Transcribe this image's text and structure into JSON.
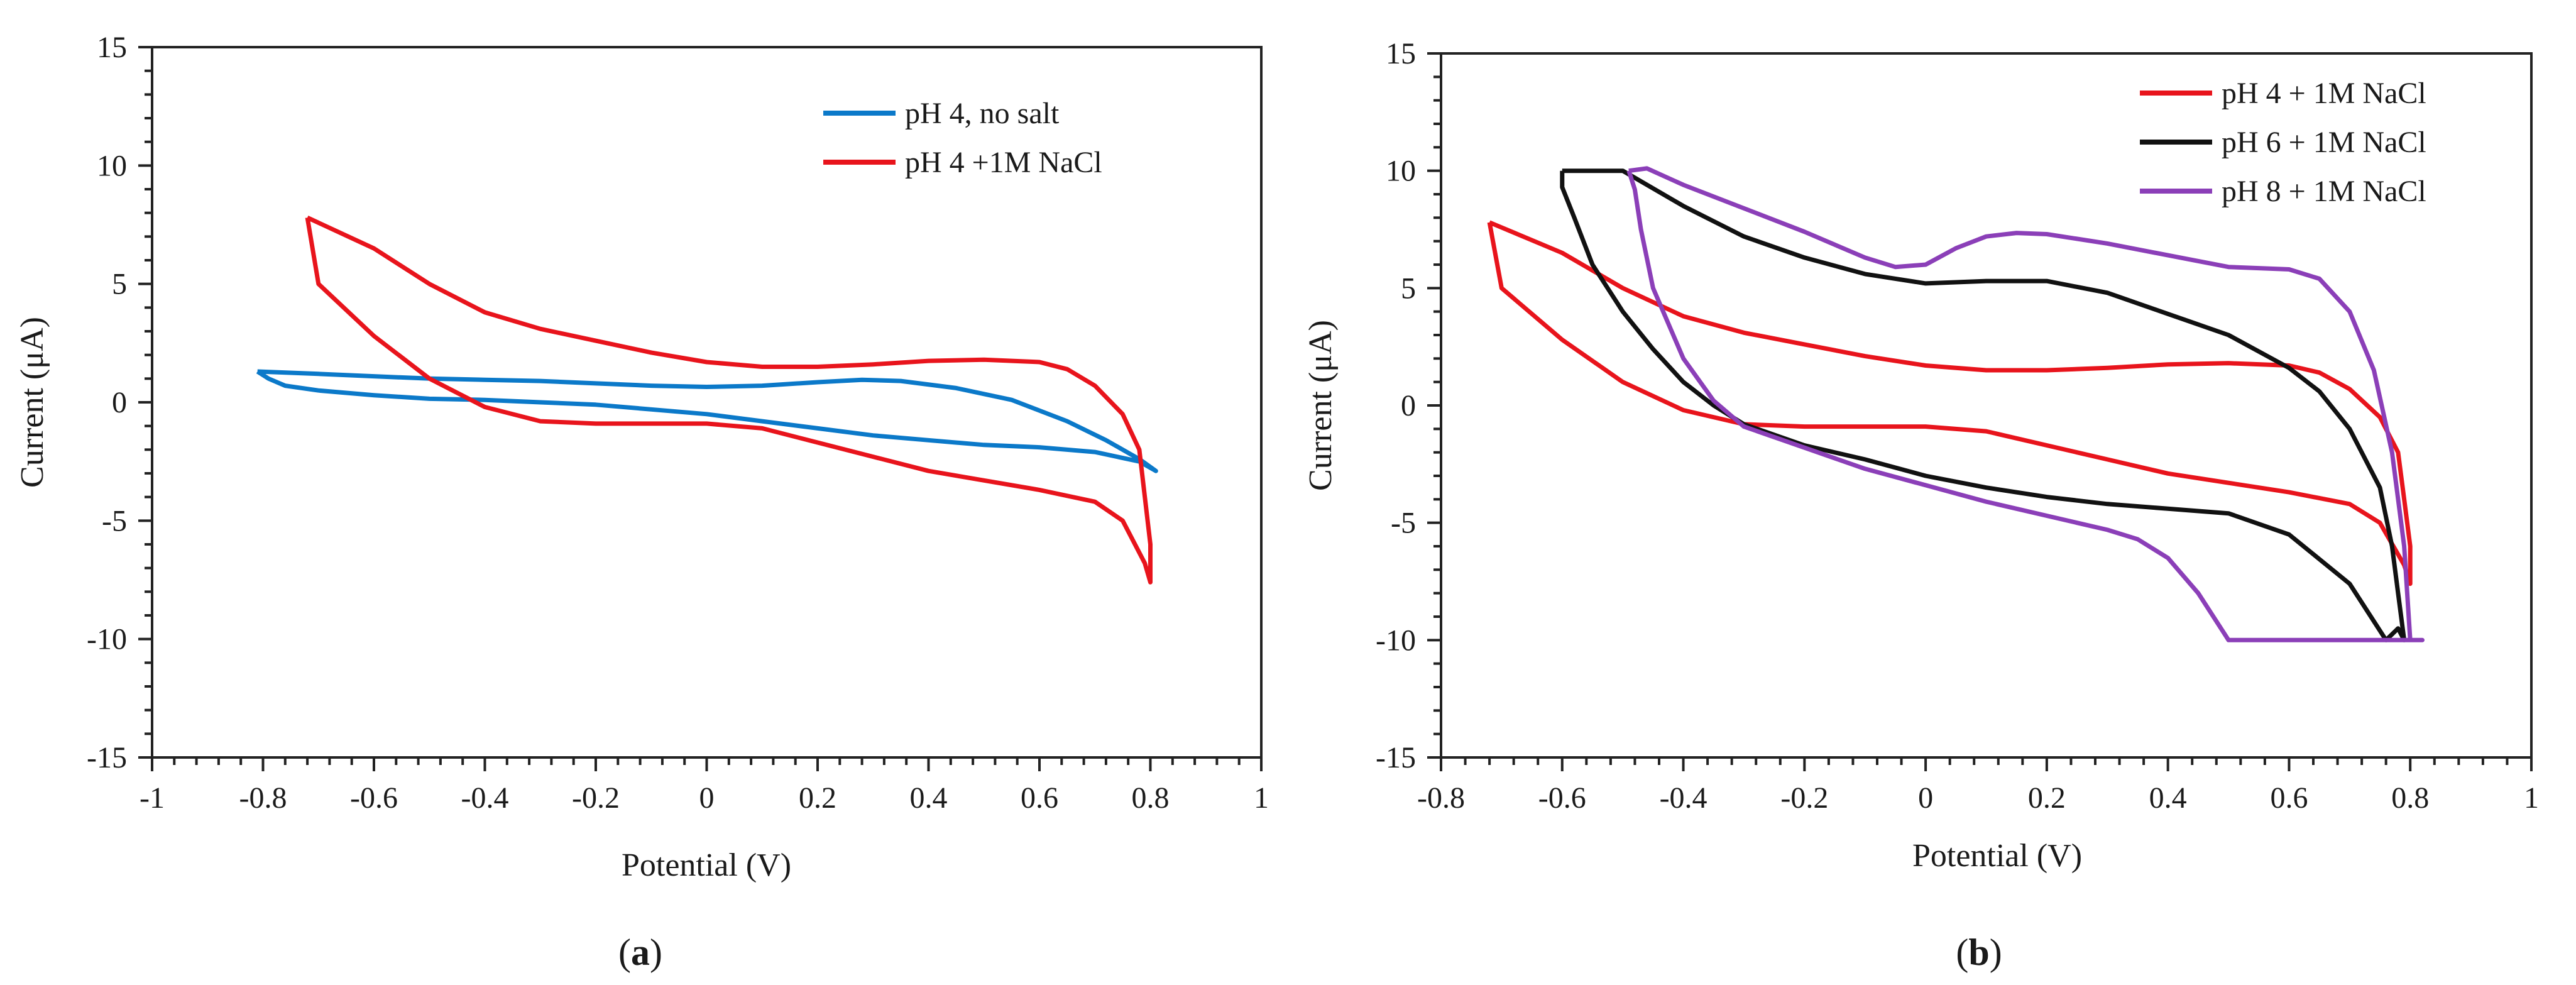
{
  "colors": {
    "blue": "#0b79c9",
    "red": "#e8141c",
    "black": "#111111",
    "purple": "#8b3fb8",
    "axis": "#222222"
  },
  "chart_data": [
    {
      "type": "line",
      "caption": {
        "open": "(",
        "letter": "a",
        "close": ")"
      },
      "xlabel": "Potential (V)",
      "ylabel": "Current (μA)",
      "xlim": [
        -1,
        1
      ],
      "ylim": [
        -15,
        15
      ],
      "x_ticks": [
        -1,
        -0.8,
        -0.6,
        -0.4,
        -0.2,
        0,
        0.2,
        0.4,
        0.6,
        0.8,
        1
      ],
      "x_tick_labels": [
        "-1",
        "-0.8",
        "-0.6",
        "-0.4",
        "-0.2",
        "0",
        "0.2",
        "0.4",
        "0.6",
        "0.8",
        "1"
      ],
      "y_ticks": [
        -15,
        -10,
        -5,
        0,
        5,
        10,
        15
      ],
      "y_tick_labels": [
        "-15",
        "-10",
        "-5",
        "0",
        "5",
        "10",
        "15"
      ],
      "grid": false,
      "legend_position": "top-right",
      "series": [
        {
          "name": "pH 4, no salt",
          "color": "#0b79c9",
          "x": [
            -0.81,
            -0.7,
            -0.6,
            -0.5,
            -0.4,
            -0.3,
            -0.2,
            -0.1,
            0.0,
            0.1,
            0.2,
            0.28,
            0.35,
            0.45,
            0.55,
            0.65,
            0.72,
            0.78,
            0.81,
            0.78,
            0.7,
            0.6,
            0.5,
            0.4,
            0.3,
            0.2,
            0.1,
            0.0,
            -0.1,
            -0.2,
            -0.3,
            -0.4,
            -0.5,
            -0.6,
            -0.7,
            -0.76,
            -0.79,
            -0.81
          ],
          "y": [
            1.3,
            1.2,
            1.1,
            1.0,
            0.95,
            0.9,
            0.8,
            0.7,
            0.65,
            0.7,
            0.85,
            0.95,
            0.9,
            0.6,
            0.1,
            -0.8,
            -1.6,
            -2.4,
            -2.9,
            -2.5,
            -2.1,
            -1.9,
            -1.8,
            -1.6,
            -1.4,
            -1.1,
            -0.8,
            -0.5,
            -0.3,
            -0.1,
            0.0,
            0.1,
            0.15,
            0.3,
            0.5,
            0.7,
            1.0,
            1.3
          ]
        },
        {
          "name": "pH 4 +1M NaCl",
          "color": "#e8141c",
          "x": [
            -0.72,
            -0.6,
            -0.5,
            -0.4,
            -0.3,
            -0.2,
            -0.1,
            0.0,
            0.1,
            0.2,
            0.3,
            0.4,
            0.5,
            0.6,
            0.65,
            0.7,
            0.75,
            0.78,
            0.79,
            0.8,
            0.8,
            0.79,
            0.75,
            0.7,
            0.6,
            0.5,
            0.4,
            0.3,
            0.2,
            0.1,
            0.0,
            -0.1,
            -0.2,
            -0.3,
            -0.4,
            -0.5,
            -0.6,
            -0.7,
            -0.72
          ],
          "y": [
            7.8,
            6.5,
            5.0,
            3.8,
            3.1,
            2.6,
            2.1,
            1.7,
            1.5,
            1.5,
            1.6,
            1.75,
            1.8,
            1.7,
            1.4,
            0.7,
            -0.5,
            -2.0,
            -4.0,
            -6.0,
            -7.6,
            -6.8,
            -5.0,
            -4.2,
            -3.7,
            -3.3,
            -2.9,
            -2.3,
            -1.7,
            -1.1,
            -0.9,
            -0.9,
            -0.9,
            -0.8,
            -0.2,
            1.0,
            2.8,
            5.0,
            7.8
          ]
        }
      ]
    },
    {
      "type": "line",
      "caption": {
        "open": "(",
        "letter": "b",
        "close": ")"
      },
      "xlabel": "Potential (V)",
      "ylabel": "Current (μA)",
      "xlim": [
        -0.8,
        1
      ],
      "ylim": [
        -15,
        15
      ],
      "x_ticks": [
        -0.8,
        -0.6,
        -0.4,
        -0.2,
        0,
        0.2,
        0.4,
        0.6,
        0.8,
        1
      ],
      "x_tick_labels": [
        "-0.8",
        "-0.6",
        "-0.4",
        "-0.2",
        "0",
        "0.2",
        "0.4",
        "0.6",
        "0.8",
        "1"
      ],
      "y_ticks": [
        -15,
        -10,
        -5,
        0,
        5,
        10,
        15
      ],
      "y_tick_labels": [
        "-15",
        "-10",
        "-5",
        "0",
        "5",
        "10",
        "15"
      ],
      "grid": false,
      "legend_position": "top-right",
      "series": [
        {
          "name": "pH 4 + 1M NaCl",
          "color": "#e8141c",
          "x": [
            -0.72,
            -0.6,
            -0.5,
            -0.4,
            -0.3,
            -0.2,
            -0.1,
            0.0,
            0.1,
            0.2,
            0.3,
            0.4,
            0.5,
            0.6,
            0.65,
            0.7,
            0.75,
            0.78,
            0.79,
            0.8,
            0.8,
            0.79,
            0.75,
            0.7,
            0.6,
            0.5,
            0.4,
            0.3,
            0.2,
            0.1,
            0.0,
            -0.1,
            -0.2,
            -0.3,
            -0.4,
            -0.5,
            -0.6,
            -0.7,
            -0.72
          ],
          "y": [
            7.8,
            6.5,
            5.0,
            3.8,
            3.1,
            2.6,
            2.1,
            1.7,
            1.5,
            1.5,
            1.6,
            1.75,
            1.8,
            1.7,
            1.4,
            0.7,
            -0.5,
            -2.0,
            -4.0,
            -6.0,
            -7.6,
            -6.8,
            -5.0,
            -4.2,
            -3.7,
            -3.3,
            -2.9,
            -2.3,
            -1.7,
            -1.1,
            -0.9,
            -0.9,
            -0.9,
            -0.8,
            -0.2,
            1.0,
            2.8,
            5.0,
            7.8
          ]
        },
        {
          "name": "pH 6 + 1M NaCl",
          "color": "#111111",
          "x": [
            -0.6,
            -0.5,
            -0.4,
            -0.3,
            -0.2,
            -0.1,
            0.0,
            0.1,
            0.2,
            0.3,
            0.4,
            0.5,
            0.6,
            0.65,
            0.7,
            0.75,
            0.77,
            0.78,
            0.79,
            0.78,
            0.76,
            0.7,
            0.6,
            0.5,
            0.4,
            0.3,
            0.2,
            0.1,
            0.0,
            -0.1,
            -0.2,
            -0.3,
            -0.35,
            -0.4,
            -0.45,
            -0.5,
            -0.55,
            -0.58,
            -0.6,
            -0.6
          ],
          "y": [
            10.0,
            10.0,
            8.5,
            7.2,
            6.3,
            5.6,
            5.2,
            5.3,
            5.3,
            4.8,
            3.9,
            3.0,
            1.6,
            0.6,
            -1.0,
            -3.5,
            -6.0,
            -8.0,
            -10.0,
            -9.5,
            -10.0,
            -7.6,
            -5.5,
            -4.6,
            -4.4,
            -4.2,
            -3.9,
            -3.5,
            -3.0,
            -2.3,
            -1.7,
            -0.8,
            0.0,
            1.0,
            2.4,
            4.0,
            6.0,
            8.0,
            9.3,
            10.0
          ]
        },
        {
          "name": "pH 8 + 1M NaCl",
          "color": "#8b3fb8",
          "x": [
            -0.49,
            -0.46,
            -0.4,
            -0.3,
            -0.2,
            -0.1,
            -0.05,
            0.0,
            0.05,
            0.1,
            0.15,
            0.2,
            0.3,
            0.4,
            0.5,
            0.6,
            0.65,
            0.7,
            0.74,
            0.77,
            0.79,
            0.8,
            0.82,
            0.5,
            0.45,
            0.4,
            0.35,
            0.3,
            0.2,
            0.1,
            0.0,
            -0.1,
            -0.2,
            -0.3,
            -0.35,
            -0.4,
            -0.45,
            -0.47,
            -0.48,
            -0.49
          ],
          "y": [
            10.0,
            10.1,
            9.4,
            8.4,
            7.4,
            6.3,
            5.9,
            6.0,
            6.7,
            7.2,
            7.35,
            7.3,
            6.9,
            6.4,
            5.9,
            5.8,
            5.4,
            4.0,
            1.5,
            -2.0,
            -6.0,
            -10.0,
            -10.0,
            -10.0,
            -8.0,
            -6.5,
            -5.7,
            -5.3,
            -4.7,
            -4.1,
            -3.4,
            -2.7,
            -1.8,
            -0.9,
            0.2,
            2.0,
            5.0,
            7.5,
            9.2,
            10.0
          ]
        }
      ]
    }
  ]
}
